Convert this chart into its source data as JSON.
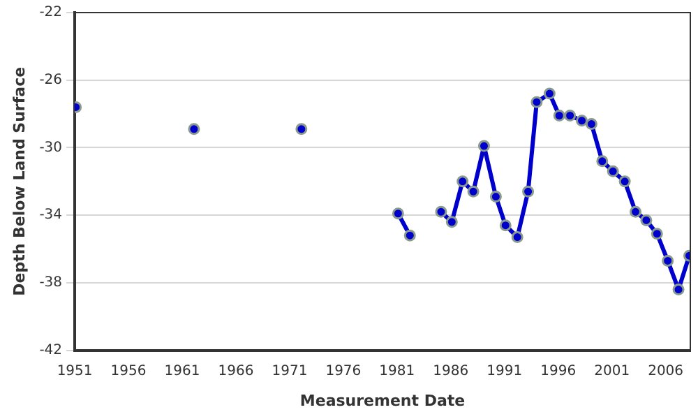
{
  "chart_data": {
    "type": "line",
    "xlabel": "Measurement Date",
    "ylabel": "Depth Below Land Surface",
    "xlim": [
      1951,
      2008.3
    ],
    "xticks": [
      1951,
      1956,
      1961,
      1966,
      1971,
      1976,
      1981,
      1986,
      1991,
      1996,
      2001,
      2006
    ],
    "ylim": [
      -42,
      -22
    ],
    "yticks": [
      -42,
      -38,
      -34,
      -30,
      -26,
      -22
    ],
    "grid": "y",
    "marker": "circle",
    "line_style": "solid",
    "series": [
      {
        "color": "#0000cc",
        "x": [
          1951.1
        ],
        "values": [
          -27.6
        ]
      },
      {
        "color": "#0000cc",
        "x": [
          1962.1
        ],
        "values": [
          -28.9
        ]
      },
      {
        "color": "#0000cc",
        "x": [
          1972.1
        ],
        "values": [
          -28.9
        ]
      },
      {
        "color": "#0000cc",
        "x": [
          1981.1,
          1982.2
        ],
        "values": [
          -33.9,
          -35.2
        ]
      },
      {
        "color": "#0000cc",
        "x": [
          1985.1,
          1986.1,
          1987.1,
          1988.1,
          1989.1,
          1990.2,
          1991.1,
          1992.2,
          1993.2,
          1994.0,
          1995.2,
          1996.1,
          1997.1,
          1998.2,
          1999.1,
          2000.1,
          2001.1,
          2002.2,
          2003.2,
          2004.2,
          2005.2,
          2006.2,
          2007.2,
          2008.2
        ],
        "values": [
          -33.8,
          -34.4,
          -32.0,
          -32.6,
          -29.9,
          -32.9,
          -34.6,
          -35.3,
          -32.6,
          -27.3,
          -26.8,
          -28.1,
          -28.1,
          -28.4,
          -28.6,
          -30.8,
          -31.4,
          -32.0,
          -33.8,
          -34.3,
          -35.1,
          -36.7,
          -38.4,
          -36.4
        ]
      }
    ]
  }
}
